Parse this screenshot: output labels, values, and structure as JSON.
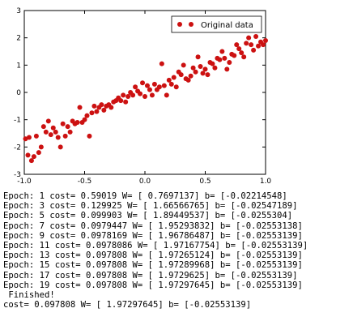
{
  "chart_data": {
    "type": "scatter",
    "title": "",
    "xlabel": "",
    "ylabel": "",
    "xlim": [
      -1.0,
      1.0
    ],
    "ylim": [
      -3,
      3
    ],
    "x_ticks": [
      "-1.0",
      "-0.5",
      "0.0",
      "0.5",
      "1.0"
    ],
    "y_ticks": [
      "3",
      "2",
      "1",
      "0",
      "-1",
      "-2",
      "-3"
    ],
    "grid": false,
    "legend_position": "top-right",
    "marker_color": "#cc1111",
    "series": [
      {
        "name": "Original data",
        "x": [
          -0.99,
          -0.97,
          -0.96,
          -0.94,
          -0.92,
          -0.9,
          -0.88,
          -0.86,
          -0.84,
          -0.82,
          -0.8,
          -0.78,
          -0.76,
          -0.74,
          -0.72,
          -0.7,
          -0.68,
          -0.66,
          -0.64,
          -0.62,
          -0.6,
          -0.58,
          -0.56,
          -0.54,
          -0.52,
          -0.5,
          -0.48,
          -0.46,
          -0.44,
          -0.42,
          -0.4,
          -0.38,
          -0.36,
          -0.34,
          -0.32,
          -0.3,
          -0.28,
          -0.26,
          -0.24,
          -0.22,
          -0.2,
          -0.18,
          -0.16,
          -0.14,
          -0.12,
          -0.1,
          -0.08,
          -0.06,
          -0.04,
          -0.02,
          0.0,
          0.02,
          0.04,
          0.06,
          0.08,
          0.1,
          0.12,
          0.14,
          0.16,
          0.18,
          0.2,
          0.22,
          0.24,
          0.26,
          0.28,
          0.3,
          0.32,
          0.34,
          0.36,
          0.38,
          0.4,
          0.42,
          0.44,
          0.46,
          0.48,
          0.5,
          0.52,
          0.54,
          0.56,
          0.58,
          0.6,
          0.62,
          0.64,
          0.66,
          0.68,
          0.7,
          0.72,
          0.74,
          0.76,
          0.78,
          0.8,
          0.82,
          0.84,
          0.86,
          0.88,
          0.9,
          0.92,
          0.94,
          0.96,
          0.98,
          1.0
        ],
        "y": [
          -1.7,
          -2.3,
          -1.65,
          -2.5,
          -2.35,
          -1.6,
          -2.2,
          -2.0,
          -1.25,
          -1.45,
          -1.05,
          -1.55,
          -1.3,
          -1.45,
          -1.65,
          -2.0,
          -1.15,
          -1.6,
          -1.25,
          -1.45,
          -1.05,
          -1.15,
          -1.1,
          -0.55,
          -1.1,
          -1.0,
          -0.85,
          -1.6,
          -0.75,
          -0.5,
          -0.7,
          -0.55,
          -0.45,
          -0.65,
          -0.5,
          -0.45,
          -0.55,
          -0.35,
          -0.3,
          -0.2,
          -0.3,
          -0.1,
          -0.35,
          -0.15,
          0.0,
          -0.1,
          0.2,
          0.05,
          -0.05,
          0.35,
          -0.15,
          0.25,
          0.1,
          -0.1,
          0.3,
          0.1,
          0.2,
          1.05,
          0.25,
          -0.1,
          0.45,
          0.3,
          0.55,
          0.2,
          0.75,
          0.65,
          1.0,
          0.5,
          0.45,
          0.6,
          0.9,
          0.75,
          1.3,
          0.95,
          0.7,
          0.85,
          0.65,
          1.1,
          1.05,
          0.9,
          1.25,
          1.2,
          1.5,
          1.25,
          0.85,
          1.1,
          1.4,
          1.35,
          1.75,
          1.6,
          1.45,
          1.3,
          1.8,
          2.0,
          1.75,
          1.55,
          2.05,
          1.7,
          1.85,
          1.75,
          1.9
        ]
      }
    ]
  },
  "console": {
    "lines": [
      "Epoch: 1 cost= 0.59019 W= [ 0.7697137] b= [-0.02214548]",
      "Epoch: 3 cost= 0.129925 W= [ 1.66566765] b= [-0.02547189]",
      "Epoch: 5 cost= 0.099903 W= [ 1.89449537] b= [-0.0255304]",
      "Epoch: 7 cost= 0.0979447 W= [ 1.95293832] b= [-0.02553138]",
      "Epoch: 9 cost= 0.0978169 W= [ 1.96786487] b= [-0.02553139]",
      "Epoch: 11 cost= 0.0978086 W= [ 1.97167754] b= [-0.02553139]",
      "Epoch: 13 cost= 0.097808 W= [ 1.97265124] b= [-0.02553139]",
      "Epoch: 15 cost= 0.097808 W= [ 1.97289968] b= [-0.02553139]",
      "Epoch: 17 cost= 0.097808 W= [ 1.9729625] b= [-0.02553139]",
      "Epoch: 19 cost= 0.097808 W= [ 1.97297645] b= [-0.02553139]",
      " Finished!",
      "cost= 0.097808 W= [ 1.97297645] b= [-0.02553139]"
    ]
  }
}
